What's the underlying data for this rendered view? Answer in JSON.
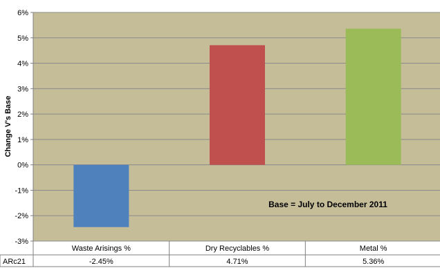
{
  "chart_data": {
    "type": "bar",
    "ylabel": "Change V's Base",
    "ylim": [
      -3,
      6
    ],
    "yticks": [
      "-3%",
      "-2%",
      "-1%",
      "0%",
      "1%",
      "2%",
      "3%",
      "4%",
      "5%",
      "6%"
    ],
    "grid": true,
    "categories": [
      "Waste Arisings %",
      "Dry Recyclables %",
      "Metal %"
    ],
    "series": [
      {
        "name": "ARc21",
        "values": [
          -2.45,
          4.71,
          5.36
        ],
        "labels": [
          "-2.45%",
          "4.71%",
          "5.36%"
        ]
      }
    ],
    "bar_colors": [
      "#4f81bd",
      "#c0504d",
      "#9bbb59"
    ],
    "plot_background": "#c4bd97",
    "annotation": "Base = July to December 2011"
  }
}
